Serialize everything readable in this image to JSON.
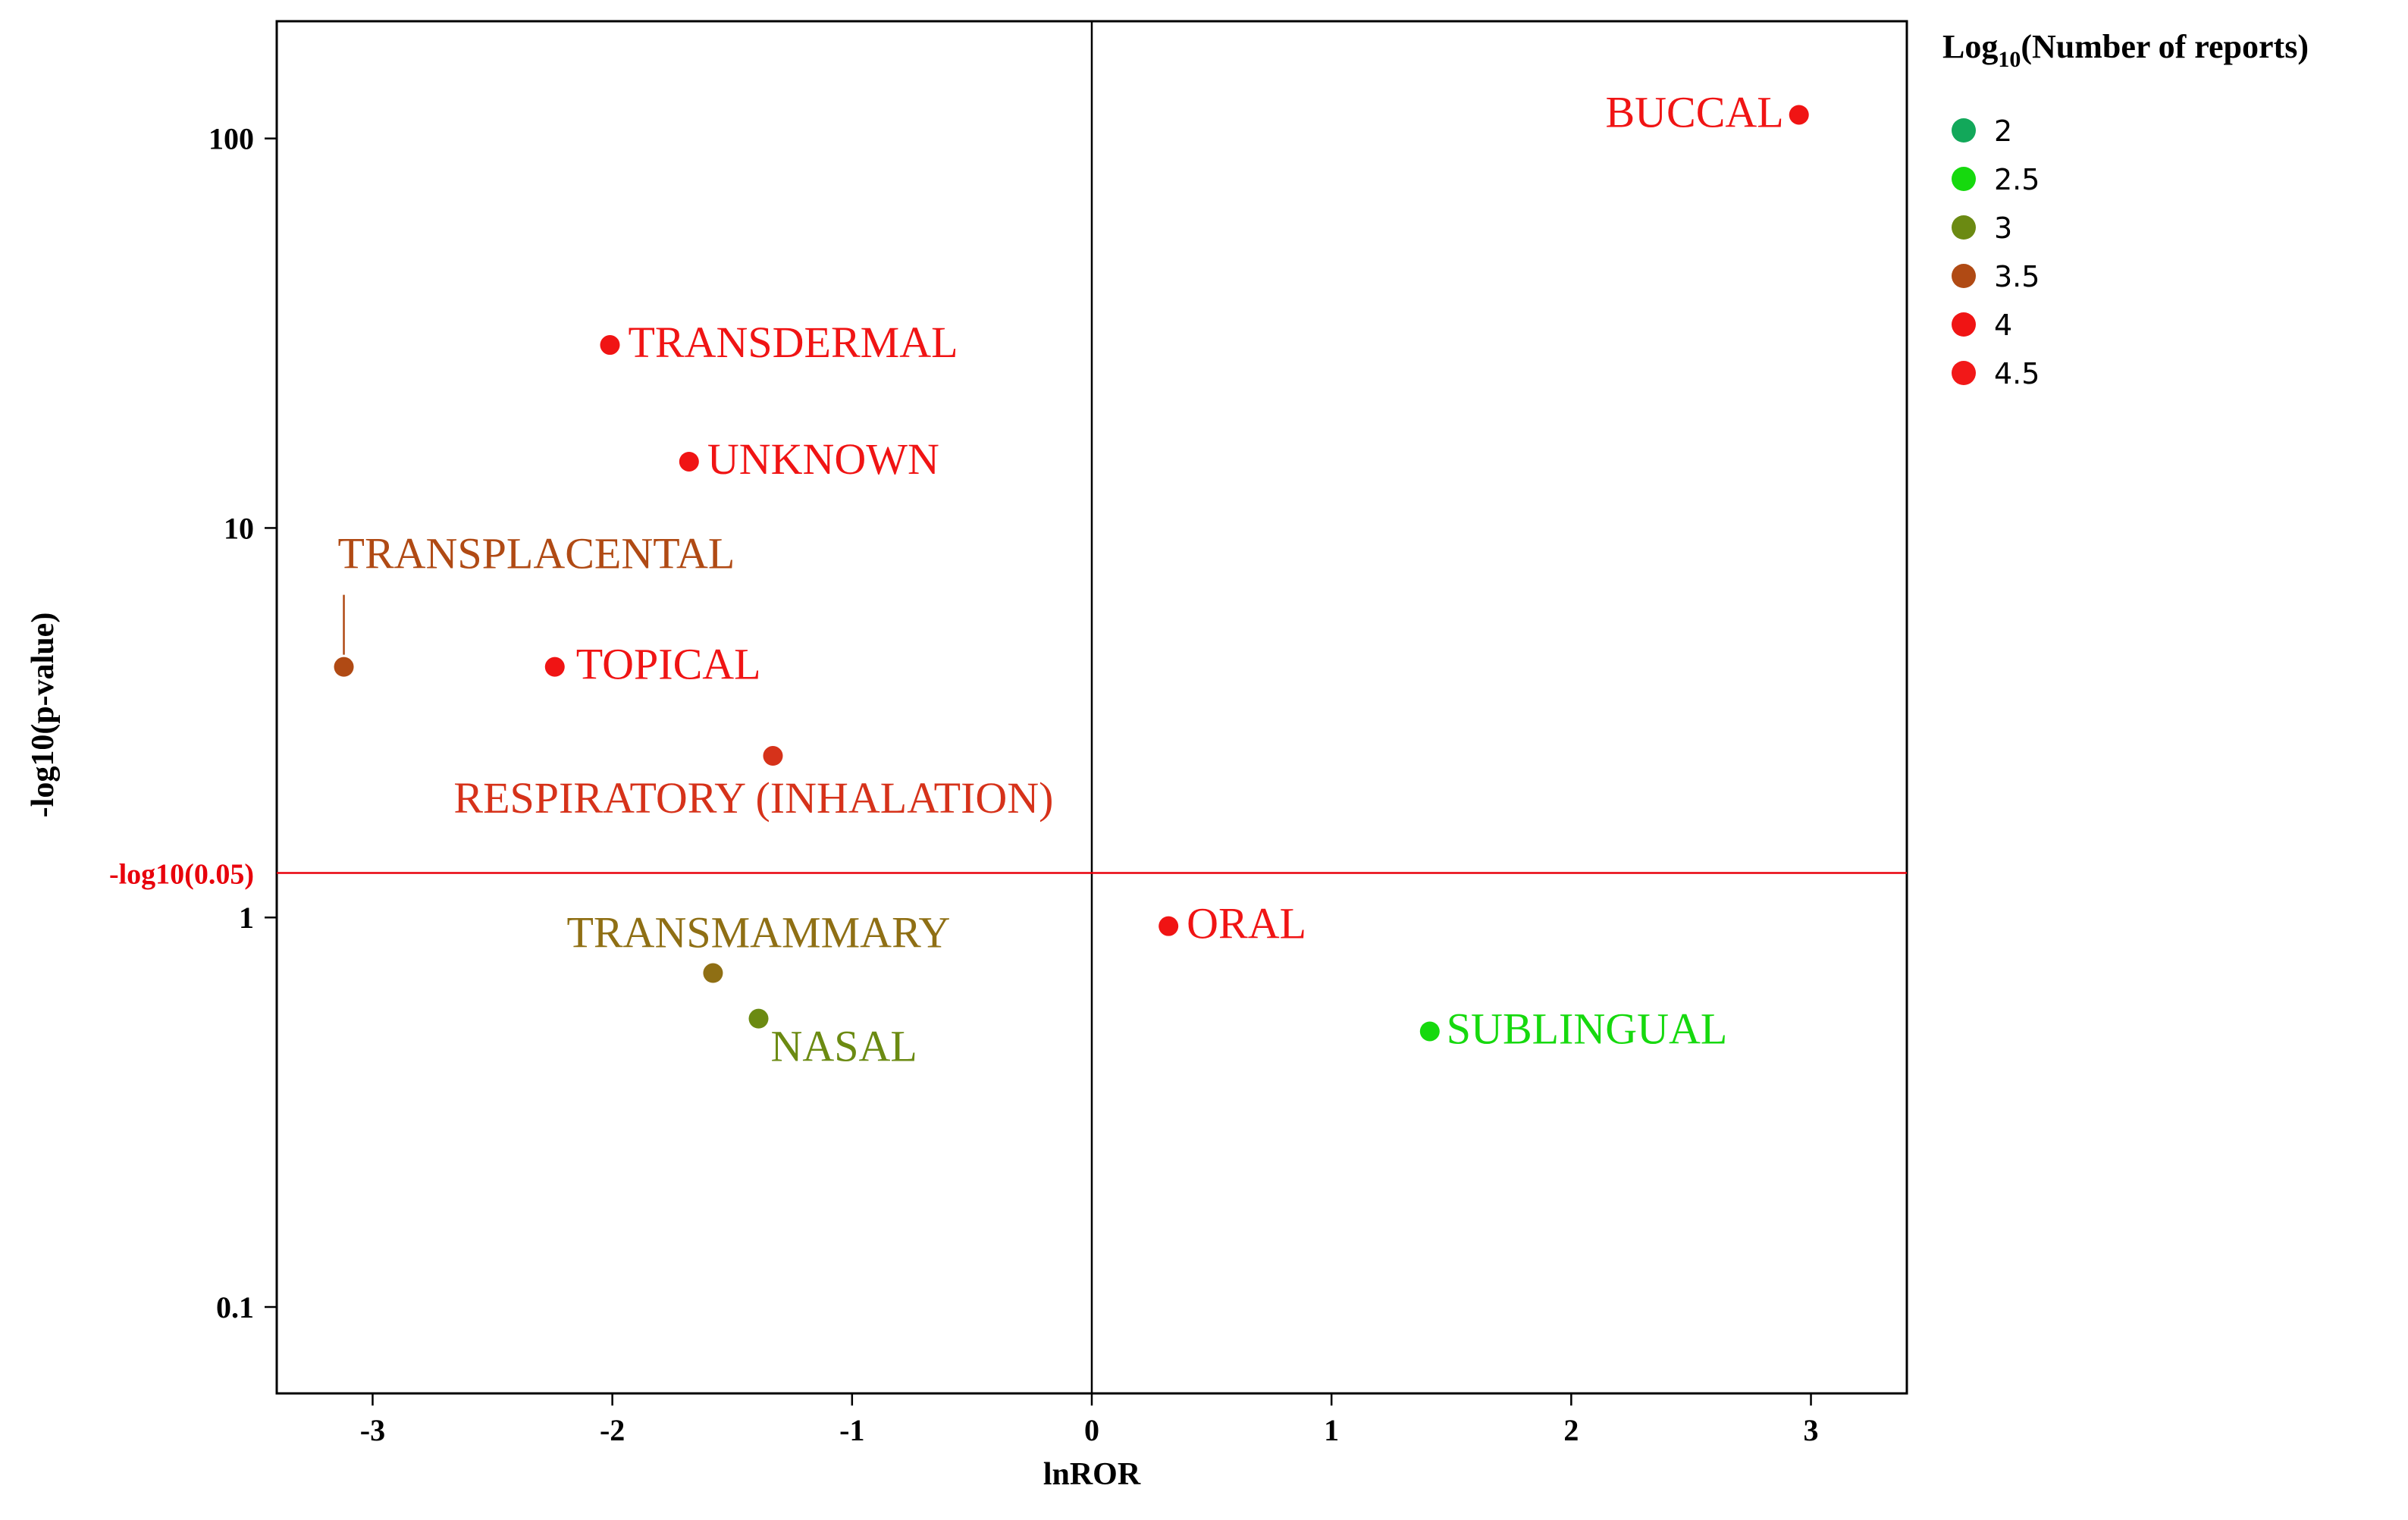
{
  "chart_data": {
    "type": "scatter",
    "xlabel": "lnROR",
    "ylabel": "-log10(p-value)",
    "yscale": "log",
    "xlim": [
      -3.4,
      3.4
    ],
    "ylim": [
      0.06,
      200
    ],
    "xticks": [
      "-3",
      "-2",
      "-1",
      "0",
      "1",
      "2",
      "3"
    ],
    "yticks": [
      "0.1",
      "1",
      "10",
      "100"
    ],
    "threshold": {
      "y": 1.301,
      "label": "-log10(0.05)",
      "color": "#e8000b"
    },
    "legend": {
      "title_prefix": "Log",
      "title_sub": "10",
      "title_suffix": "(Number of reports)",
      "placement": "right",
      "items": [
        {
          "label": "2",
          "color": "#12a85a"
        },
        {
          "label": "2.5",
          "color": "#16d90e"
        },
        {
          "label": "3",
          "color": "#6b8a12"
        },
        {
          "label": "3.5",
          "color": "#b04a14"
        },
        {
          "label": "4",
          "color": "#f01414"
        },
        {
          "label": "4.5",
          "color": "#f21818"
        }
      ]
    },
    "points": [
      {
        "name": "BUCCAL",
        "x": 2.95,
        "y": 115,
        "color": "#f01414"
      },
      {
        "name": "TRANSDERMAL",
        "x": -2.01,
        "y": 29.5,
        "color": "#f01414"
      },
      {
        "name": "UNKNOWN",
        "x": -1.68,
        "y": 14.8,
        "color": "#f01414"
      },
      {
        "name": "TRANSPLACENTAL",
        "x": -3.12,
        "y": 4.4,
        "color": "#b04a14"
      },
      {
        "name": "TOPICAL",
        "x": -2.24,
        "y": 4.4,
        "color": "#f01414"
      },
      {
        "name": "RESPIRATORY (INHALATION)",
        "x": -1.33,
        "y": 2.6,
        "color": "#d6321a"
      },
      {
        "name": "ORAL",
        "x": 0.32,
        "y": 0.95,
        "color": "#f01414"
      },
      {
        "name": "TRANSMAMMARY",
        "x": -1.58,
        "y": 0.72,
        "color": "#8f6f14"
      },
      {
        "name": "NASAL",
        "x": -1.39,
        "y": 0.55,
        "color": "#6b8a12"
      },
      {
        "name": "SUBLINGUAL",
        "x": 1.41,
        "y": 0.51,
        "color": "#16d90e"
      }
    ]
  }
}
